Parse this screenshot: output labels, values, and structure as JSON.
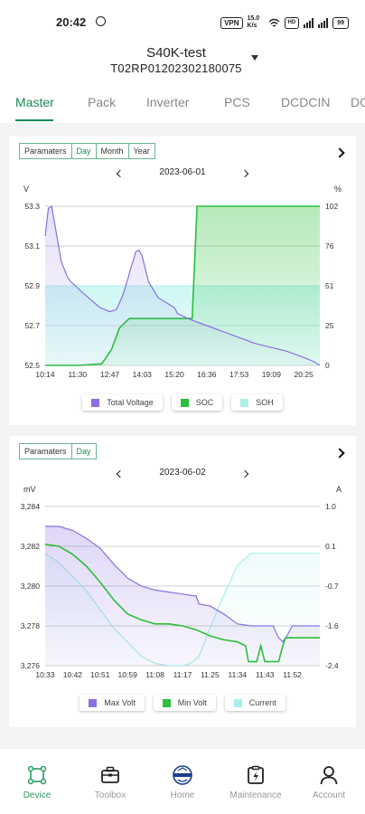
{
  "status_bar": {
    "time": "20:42",
    "vpn": "VPN",
    "speed": "15.0 K/s",
    "battery": "99"
  },
  "header": {
    "device_name": "S40K-test",
    "serial": "T02RP01202302180075"
  },
  "tabs": [
    {
      "label": "Master",
      "active": true
    },
    {
      "label": "Pack"
    },
    {
      "label": "Inverter"
    },
    {
      "label": "PCS"
    },
    {
      "label": "DCDCIN"
    },
    {
      "label": "DC"
    }
  ],
  "chart1_controls": {
    "segments": [
      "Paramaters",
      "Day",
      "Month",
      "Year"
    ],
    "selected": "Day",
    "date": "2023-06-01",
    "left_unit": "V",
    "right_unit": "%"
  },
  "chart2_controls": {
    "segments": [
      "Paramaters",
      "Day"
    ],
    "selected": "Day",
    "date": "2023-06-02",
    "left_unit": "mV",
    "right_unit": "A"
  },
  "chart_data": [
    {
      "type": "line",
      "x_ticks": [
        "10:14",
        "11:30",
        "12:47",
        "14:03",
        "15:20",
        "16:36",
        "17:53",
        "19:09",
        "20:25"
      ],
      "left_ticks": [
        "53.3",
        "53.1",
        "52.9",
        "52.7",
        "52.5"
      ],
      "right_ticks": [
        "102",
        "76",
        "51",
        "25",
        "0"
      ],
      "ylim_left": [
        52.5,
        53.3
      ],
      "ylim_right": [
        0,
        102
      ],
      "grid": true,
      "legend_position": "bottom",
      "series": [
        {
          "name": "Total Voltage",
          "color": "#8b6fe0",
          "axis": "left",
          "t": [
            0,
            0.1,
            0.2,
            0.5,
            0.7,
            0.8,
            1.2,
            1.7,
            2.0,
            2.2,
            2.4,
            2.55,
            2.65,
            2.75,
            2.8,
            2.9,
            3.0,
            3.2,
            3.5,
            3.8,
            4.0,
            4.1,
            4.5,
            5.0,
            5.5,
            6.0,
            6.5,
            7.0,
            7.5,
            8.0,
            8.3,
            8.5
          ],
          "y": [
            53.15,
            53.29,
            53.3,
            53.02,
            52.94,
            52.92,
            52.86,
            52.79,
            52.77,
            52.78,
            52.85,
            52.93,
            52.99,
            53.04,
            53.07,
            53.08,
            53.05,
            52.92,
            52.84,
            52.81,
            52.79,
            52.76,
            52.73,
            52.7,
            52.67,
            52.64,
            52.61,
            52.59,
            52.57,
            52.54,
            52.52,
            52.5
          ]
        },
        {
          "name": "SOC",
          "color": "#2bbf3a",
          "axis": "right",
          "t": [
            0,
            1.0,
            1.75,
            2.05,
            2.3,
            2.6,
            4.0,
            4.4,
            4.55,
            4.7,
            5.0,
            8.5
          ],
          "y": [
            0,
            0,
            1,
            10,
            24,
            30,
            30,
            30,
            30,
            102,
            102,
            102
          ]
        },
        {
          "name": "SOH",
          "color": "#a9f0ec",
          "axis": "right",
          "t": [
            0,
            8.5
          ],
          "y": [
            51,
            51
          ]
        }
      ]
    },
    {
      "type": "line",
      "x_ticks": [
        "10:33",
        "10:42",
        "10:51",
        "10:59",
        "11:08",
        "11:17",
        "11:25",
        "11:34",
        "11:43",
        "11:52"
      ],
      "left_ticks": [
        "3,284",
        "3,282",
        "3,280",
        "3,278",
        "3,276"
      ],
      "right_ticks": [
        "1.0",
        "0.1",
        "-0.7",
        "-1.6",
        "-2.4"
      ],
      "ylim_left": [
        3276,
        3284
      ],
      "ylim_right": [
        -2.4,
        1.0
      ],
      "grid": true,
      "legend_position": "bottom",
      "series": [
        {
          "name": "Max Volt",
          "color": "#8b6fe0",
          "axis": "left",
          "t": [
            0,
            0.5,
            1.0,
            1.5,
            2.0,
            2.5,
            3.0,
            3.5,
            4.0,
            4.5,
            5.0,
            5.5,
            5.6,
            6.0,
            6.5,
            7.0,
            7.5,
            8.0,
            8.3,
            8.5,
            8.65,
            8.8,
            9.0,
            9.5,
            10.0
          ],
          "y": [
            3283.0,
            3283.0,
            3282.8,
            3282.4,
            3281.9,
            3281.1,
            3280.4,
            3280.0,
            3279.8,
            3279.7,
            3279.6,
            3279.5,
            3279.1,
            3279.0,
            3278.6,
            3278.1,
            3278.0,
            3278.0,
            3278.0,
            3277.4,
            3277.2,
            3277.5,
            3278.0,
            3278.0,
            3278.0
          ]
        },
        {
          "name": "Min Volt",
          "color": "#2bbf3a",
          "axis": "left",
          "t": [
            0,
            0.5,
            1.0,
            1.5,
            2.0,
            2.5,
            3.0,
            3.5,
            4.0,
            4.5,
            5.0,
            5.5,
            6.0,
            6.5,
            7.0,
            7.3,
            7.4,
            7.7,
            7.85,
            8.0,
            8.3,
            8.5,
            8.65,
            8.75,
            9.0,
            10.0
          ],
          "y": [
            3282.1,
            3282.0,
            3281.6,
            3281.0,
            3280.2,
            3279.3,
            3278.6,
            3278.3,
            3278.1,
            3278.1,
            3278.0,
            3277.8,
            3277.5,
            3277.3,
            3277.2,
            3277.0,
            3276.2,
            3276.2,
            3277.0,
            3276.2,
            3276.2,
            3276.2,
            3277.0,
            3277.4,
            3277.4,
            3277.4
          ]
        },
        {
          "name": "Current",
          "color": "#a9f0ec",
          "axis": "right",
          "t": [
            0,
            0.5,
            1.0,
            1.5,
            2.0,
            2.5,
            3.0,
            3.5,
            4.0,
            4.5,
            5.0,
            5.3,
            5.6,
            6.0,
            6.5,
            7.0,
            7.5,
            8.0,
            10.0
          ],
          "y": [
            0.0,
            -0.2,
            -0.5,
            -0.8,
            -1.2,
            -1.6,
            -1.9,
            -2.2,
            -2.35,
            -2.4,
            -2.4,
            -2.35,
            -2.2,
            -1.6,
            -0.9,
            -0.25,
            0.0,
            0.0,
            0.0
          ]
        }
      ]
    }
  ],
  "nav": [
    {
      "label": "Device",
      "icon": "device-icon",
      "active": true
    },
    {
      "label": "Toolbox",
      "icon": "toolbox-icon"
    },
    {
      "label": "Home",
      "icon": "home-logo-icon"
    },
    {
      "label": "Maintenance",
      "icon": "maintenance-icon"
    },
    {
      "label": "Account",
      "icon": "account-icon"
    }
  ],
  "colors": {
    "accent": "#1a8a57",
    "purple": "#8b6fe0",
    "green": "#2bbf3a",
    "cyan": "#a9f0ec"
  }
}
